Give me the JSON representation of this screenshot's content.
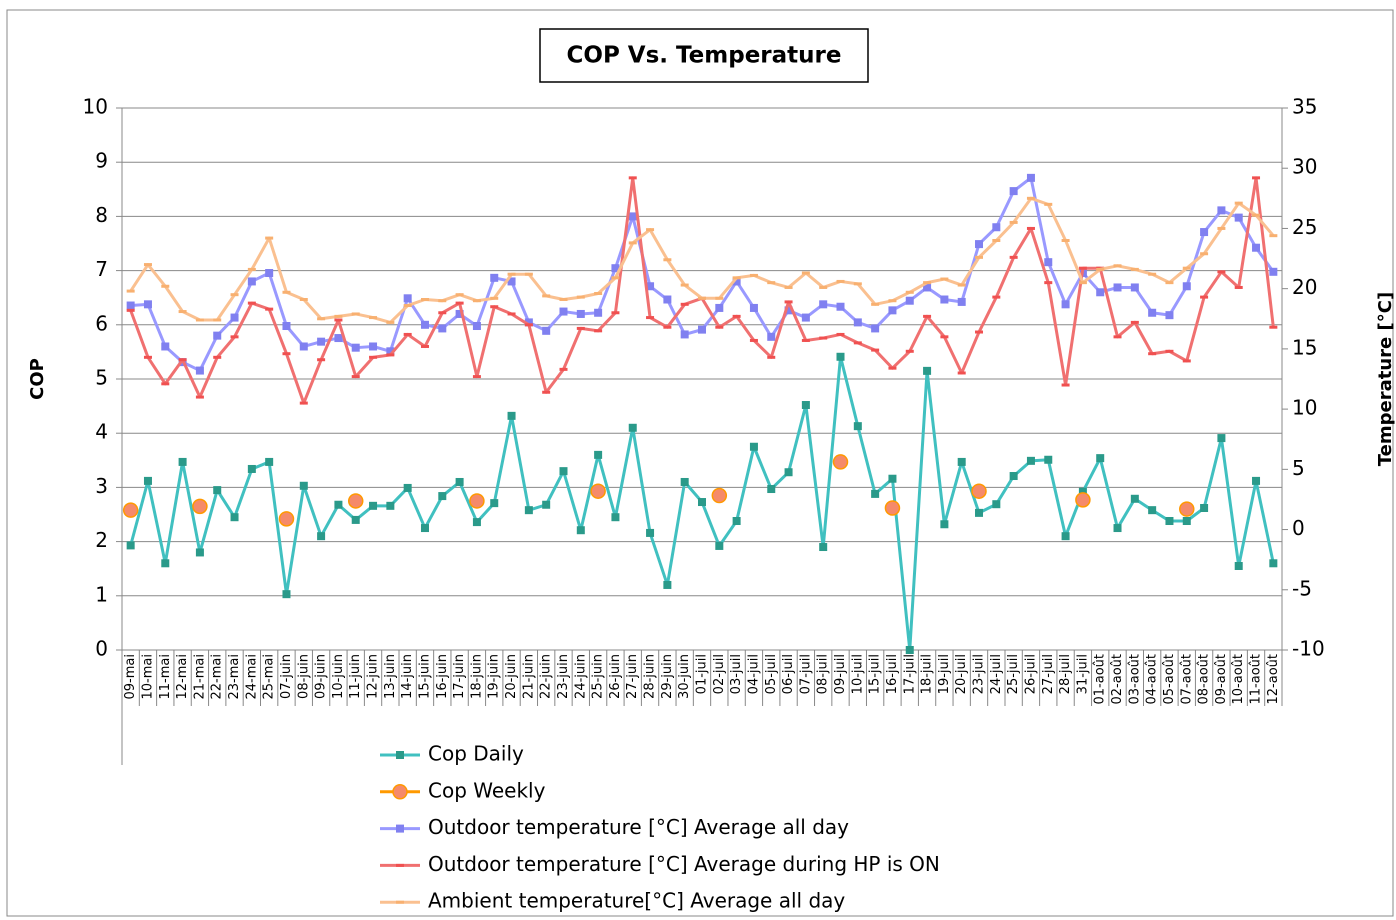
{
  "chart_data": {
    "type": "line",
    "title": "COP Vs. Temperature",
    "y_label": "COP",
    "y2_label": "Temperature [°C]",
    "ylim": [
      0,
      10
    ],
    "yticks": [
      0,
      1,
      2,
      3,
      4,
      5,
      6,
      7,
      8,
      9,
      10
    ],
    "y2lim": [
      -10,
      35
    ],
    "y2ticks": [
      -10,
      -5,
      0,
      5,
      10,
      15,
      20,
      25,
      30,
      35
    ],
    "grid": true,
    "legend_position": "bottom",
    "categories": [
      "09-mai",
      "10-mai",
      "11-mai",
      "12-mai",
      "21-mai",
      "22-mai",
      "23-mai",
      "24-mai",
      "25-mai",
      "07-juin",
      "08-juin",
      "09-juin",
      "10-juin",
      "11-juin",
      "12-juin",
      "13-juin",
      "14-juin",
      "15-juin",
      "16-juin",
      "17-juin",
      "18-juin",
      "19-juin",
      "20-juin",
      "21-juin",
      "22-juin",
      "23-juin",
      "24-juin",
      "25-juin",
      "26-juin",
      "27-juin",
      "28-juin",
      "29-juin",
      "30-juin",
      "01-juil",
      "02-juil",
      "03-juil",
      "04-juil",
      "05-juil",
      "06-juil",
      "07-juil",
      "08-juil",
      "09-juil",
      "10-juil",
      "15-juil",
      "16-juil",
      "17-juil",
      "18-juil",
      "19-juil",
      "20-juil",
      "23-juil",
      "24-juil",
      "25-juil",
      "26-juil",
      "27-juil",
      "28-juil",
      "31-juil",
      "01-août",
      "02-août",
      "03-août",
      "04-août",
      "05-août",
      "07-août",
      "08-août",
      "09-août",
      "10-août",
      "11-août",
      "12-août"
    ],
    "series": [
      {
        "name": "Cop Daily",
        "color": "#40c0c0",
        "marker": "square",
        "marker_color": "#2a9a8a",
        "line": true,
        "values": [
          1.93,
          3.12,
          1.6,
          3.47,
          1.8,
          2.95,
          2.45,
          3.34,
          3.47,
          1.03,
          3.03,
          2.1,
          2.68,
          2.4,
          2.66,
          2.66,
          2.99,
          2.25,
          2.84,
          3.1,
          2.36,
          2.71,
          4.32,
          2.58,
          2.68,
          3.3,
          2.21,
          3.6,
          2.45,
          4.1,
          2.16,
          1.2,
          3.1,
          2.73,
          1.92,
          2.38,
          3.75,
          2.97,
          3.28,
          4.52,
          1.9,
          5.41,
          4.13,
          2.88,
          3.16,
          0,
          5.15,
          2.32,
          3.47,
          2.53,
          2.69,
          3.21,
          3.49,
          3.51,
          2.1,
          2.92,
          3.54,
          2.25,
          2.79,
          2.58,
          2.38,
          2.38,
          2.62,
          3.91,
          1.55,
          3.12,
          1.6
        ]
      },
      {
        "name": "Cop Weekly",
        "color": "#ff9900",
        "marker": "circle",
        "marker_color": "#f58a6a",
        "line": true,
        "values": [
          2.58,
          null,
          null,
          null,
          2.65,
          null,
          null,
          null,
          null,
          2.42,
          null,
          null,
          null,
          2.75,
          null,
          null,
          null,
          null,
          null,
          null,
          2.75,
          null,
          null,
          null,
          null,
          null,
          null,
          2.93,
          null,
          null,
          null,
          null,
          null,
          null,
          2.85,
          null,
          null,
          null,
          null,
          null,
          null,
          3.47,
          null,
          null,
          2.62,
          null,
          null,
          null,
          null,
          2.93,
          null,
          null,
          null,
          null,
          null,
          2.77,
          null,
          null,
          null,
          null,
          null,
          2.6,
          null,
          null,
          null,
          null,
          null
        ]
      },
      {
        "name": "Outdoor temperature [°C] Average all day",
        "color": "#9999ff",
        "marker": "square",
        "marker_color": "#8080f0",
        "line": true,
        "axis": "y2",
        "values": [
          18.6,
          18.7,
          15.2,
          13.9,
          13.2,
          16.1,
          17.6,
          20.6,
          21.3,
          16.9,
          15.2,
          15.6,
          15.9,
          15.1,
          15.2,
          14.8,
          19.2,
          17.0,
          16.7,
          17.9,
          16.9,
          20.9,
          20.6,
          17.2,
          16.5,
          18.1,
          17.9,
          18.0,
          21.7,
          26.0,
          20.2,
          19.1,
          16.2,
          16.6,
          18.4,
          20.6,
          18.4,
          16.0,
          18.2,
          17.6,
          18.7,
          18.5,
          17.2,
          16.7,
          18.2,
          19.0,
          20.1,
          19.1,
          18.9,
          23.7,
          25.1,
          28.1,
          29.2,
          22.2,
          18.7,
          21.3,
          19.7,
          20.1,
          20.1,
          18.0,
          17.8,
          20.2,
          24.7,
          26.5,
          25.9,
          23.4,
          21.4
        ]
      },
      {
        "name": "Outdoor temperature [°C] Average during HP is ON",
        "color": "#f07070",
        "marker": "dash",
        "marker_color": "#f05050",
        "line": true,
        "axis": "y2",
        "values": [
          18.2,
          14.3,
          12.1,
          14.1,
          11.0,
          14.3,
          16.0,
          18.8,
          18.3,
          14.6,
          10.5,
          14.1,
          17.4,
          12.7,
          14.3,
          14.5,
          16.2,
          15.2,
          18.0,
          18.8,
          12.7,
          18.5,
          17.9,
          17.0,
          11.4,
          13.3,
          16.7,
          16.5,
          18.0,
          29.2,
          17.6,
          16.8,
          18.7,
          19.2,
          16.8,
          17.7,
          15.7,
          14.3,
          18.9,
          15.7,
          15.9,
          16.2,
          15.5,
          14.9,
          13.4,
          14.8,
          17.7,
          16.0,
          13.0,
          16.4,
          19.3,
          22.6,
          25.0,
          20.5,
          12.0,
          21.7,
          21.7,
          16.0,
          17.2,
          14.6,
          14.8,
          14.0,
          19.3,
          21.4,
          20.1,
          29.2,
          16.8
        ]
      },
      {
        "name": "Ambient temperature[°C] Average all day",
        "color": "#fac090",
        "marker": "dash",
        "marker_color": "#f8b070",
        "line": true,
        "axis": "y2",
        "values": [
          19.8,
          22.0,
          20.2,
          18.1,
          17.4,
          17.4,
          19.5,
          21.6,
          24.2,
          19.7,
          19.1,
          17.5,
          17.7,
          17.9,
          17.6,
          17.2,
          18.6,
          19.1,
          19.0,
          19.5,
          19.0,
          19.2,
          21.2,
          21.2,
          19.4,
          19.1,
          19.3,
          19.6,
          20.9,
          23.8,
          24.9,
          22.4,
          20.3,
          19.2,
          19.2,
          20.9,
          21.1,
          20.5,
          20.1,
          21.3,
          20.1,
          20.6,
          20.4,
          18.7,
          19.0,
          19.7,
          20.5,
          20.8,
          20.3,
          22.6,
          24.0,
          25.5,
          27.5,
          27.0,
          24.0,
          20.5,
          21.6,
          21.9,
          21.6,
          21.2,
          20.5,
          21.7,
          22.9,
          25.0,
          27.1,
          26.1,
          24.4
        ]
      }
    ]
  }
}
